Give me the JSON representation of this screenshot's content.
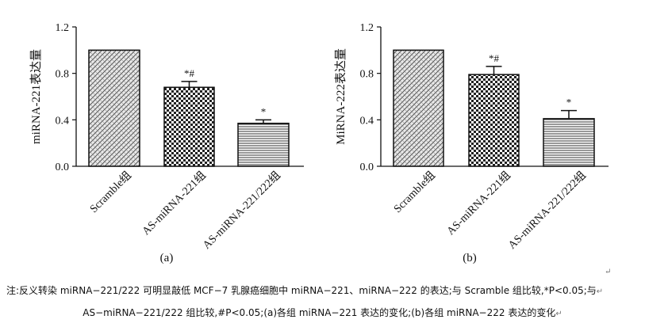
{
  "chart_data": [
    {
      "type": "bar",
      "panel_label": "(a)",
      "ylabel": "miRNA-221表达量",
      "categories": [
        "Scramble组",
        "AS-miRNA-221组",
        "AS-miRNA-221/222组"
      ],
      "values": [
        1.0,
        0.68,
        0.37
      ],
      "errors": [
        0,
        0.05,
        0.03
      ],
      "annotations": [
        "",
        "*#",
        "*"
      ],
      "ylim": [
        0,
        1.2
      ],
      "yticks": [
        "0.0",
        "0.4",
        "0.8",
        "1.2"
      ],
      "tick_values": [
        0,
        0.4,
        0.8,
        1.2
      ],
      "patterns": [
        "woven",
        "check",
        "hlines"
      ]
    },
    {
      "type": "bar",
      "panel_label": "(b)",
      "ylabel": "MiRNA-222表达量",
      "categories": [
        "Scramble组",
        "AS-miRNA-221组",
        "AS-miRNA-221/222组"
      ],
      "values": [
        1.0,
        0.79,
        0.41
      ],
      "errors": [
        0,
        0.07,
        0.07
      ],
      "annotations": [
        "",
        "*#",
        "*"
      ],
      "ylim": [
        0,
        1.2
      ],
      "yticks": [
        "0.0",
        "0.4",
        "0.8",
        "1.2"
      ],
      "tick_values": [
        0,
        0.4,
        0.8,
        1.2
      ],
      "patterns": [
        "woven",
        "check",
        "hlines"
      ]
    }
  ],
  "caption": {
    "line1": "注:反义转染 miRNA−221/222 可明显敲低 MCF−7 乳腺癌细胞中 miRNA−221、miRNA−222 的表达;与 Scramble 组比较,*P<0.05;与",
    "line2": "AS−miRNA−221/222 组比较,#P<0.05;(a)各组 miRNA−221 表达的变化;(b)各组 miRNA−222 表达的变化"
  },
  "return_mark": "↵"
}
